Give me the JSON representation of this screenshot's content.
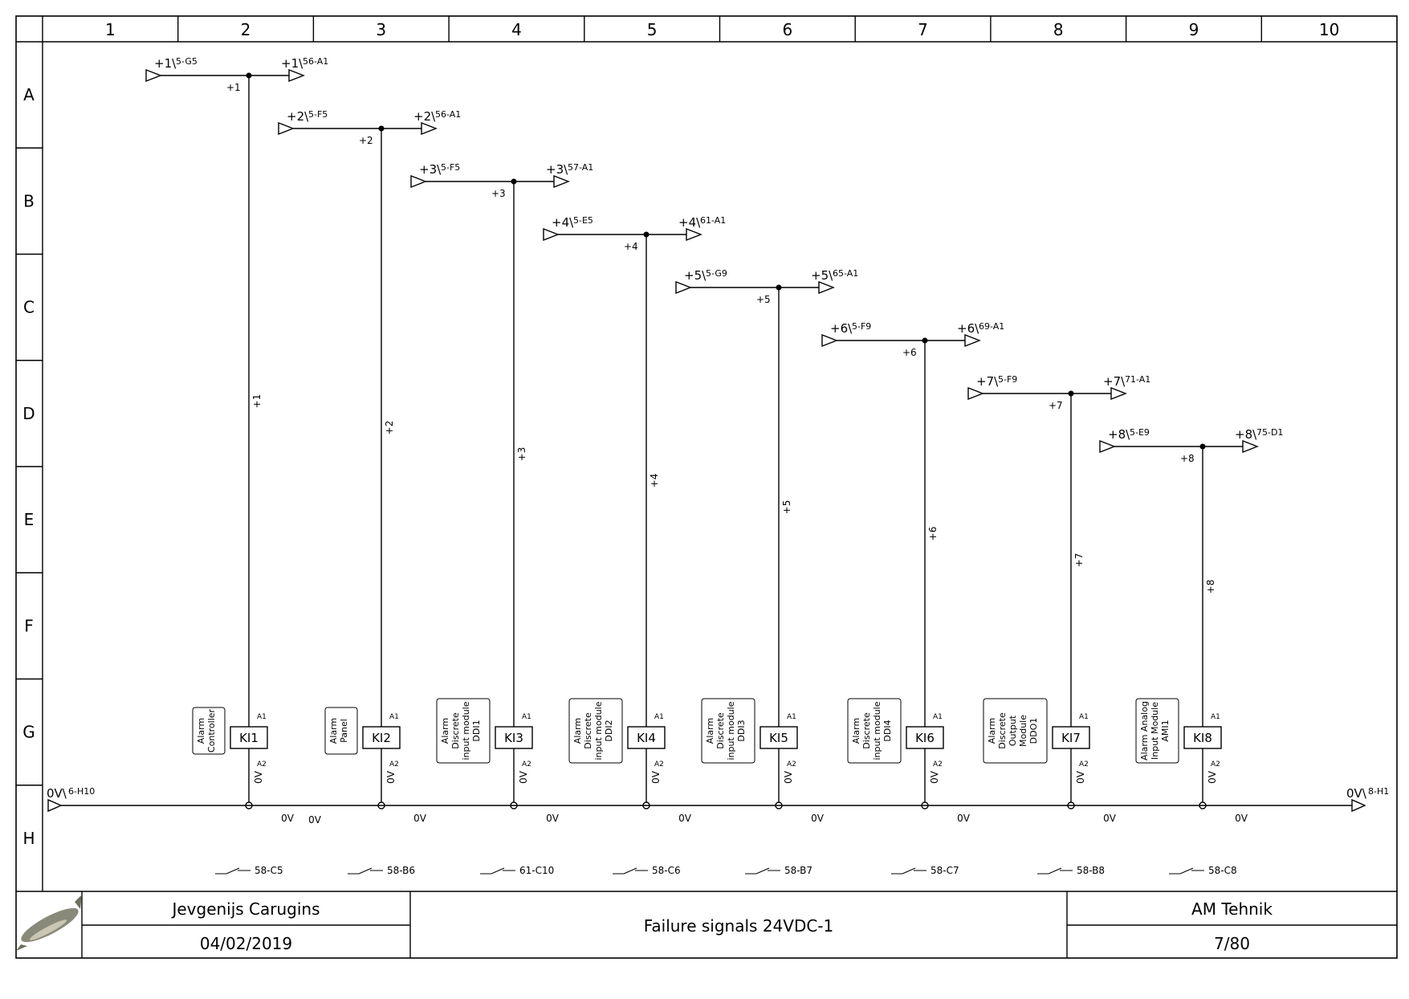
{
  "columns": [
    "1",
    "2",
    "3",
    "4",
    "5",
    "6",
    "7",
    "8",
    "9",
    "10"
  ],
  "rows": [
    "A",
    "B",
    "C",
    "D",
    "E",
    "F",
    "G",
    "H"
  ],
  "title_block": {
    "author": "Jevgenijs Carugins",
    "date": "04/02/2019",
    "title": "Failure signals 24VDC-1",
    "company": "AM Tehnik",
    "page": "7/80",
    "logo_icon": "sturgeon-fish-icon"
  },
  "ground_bus": {
    "left_label": "0V\\",
    "left_ref": "6-H10",
    "right_label": "0V\\",
    "right_ref": "8-H1",
    "net": "0V"
  },
  "circuits": [
    {
      "net": "+1",
      "in_label": "+1\\",
      "in_ref": "5-G5",
      "out_label": "+1\\",
      "out_ref": "56-A1",
      "wire": "+1",
      "relay": "KI1",
      "pin_top": "A1",
      "pin_bottom": "A2",
      "gnd": "0V",
      "device": [
        "Alarm",
        "Controller"
      ],
      "contact_ref": "58-C5"
    },
    {
      "net": "+2",
      "in_label": "+2\\",
      "in_ref": "5-F5",
      "out_label": "+2\\",
      "out_ref": "56-A1",
      "wire": "+2",
      "relay": "KI2",
      "pin_top": "A1",
      "pin_bottom": "A2",
      "gnd": "0V",
      "device": [
        "Alarm",
        "Panel"
      ],
      "contact_ref": "58-B6"
    },
    {
      "net": "+3",
      "in_label": "+3\\",
      "in_ref": "5-F5",
      "out_label": "+3\\",
      "out_ref": "57-A1",
      "wire": "+3",
      "relay": "KI3",
      "pin_top": "A1",
      "pin_bottom": "A2",
      "gnd": "0V",
      "device": [
        "Alarm",
        "Discrete",
        "input module",
        "DDI1"
      ],
      "contact_ref": "61-C10"
    },
    {
      "net": "+4",
      "in_label": "+4\\",
      "in_ref": "5-E5",
      "out_label": "+4\\",
      "out_ref": "61-A1",
      "wire": "+4",
      "relay": "KI4",
      "pin_top": "A1",
      "pin_bottom": "A2",
      "gnd": "0V",
      "device": [
        "Alarm",
        "Discrete",
        "input module",
        "DDI2"
      ],
      "contact_ref": "58-C6"
    },
    {
      "net": "+5",
      "in_label": "+5\\",
      "in_ref": "5-G9",
      "out_label": "+5\\",
      "out_ref": "65-A1",
      "wire": "+5",
      "relay": "KI5",
      "pin_top": "A1",
      "pin_bottom": "A2",
      "gnd": "0V",
      "device": [
        "Alarm",
        "Discrete",
        "input module",
        "DDI3"
      ],
      "contact_ref": "58-B7"
    },
    {
      "net": "+6",
      "in_label": "+6\\",
      "in_ref": "5-F9",
      "out_label": "+6\\",
      "out_ref": "69-A1",
      "wire": "+6",
      "relay": "KI6",
      "pin_top": "A1",
      "pin_bottom": "A2",
      "gnd": "0V",
      "device": [
        "Alarm",
        "Discrete",
        "input module",
        "DDI4"
      ],
      "contact_ref": "58-C7"
    },
    {
      "net": "+7",
      "in_label": "+7\\",
      "in_ref": "5-F9",
      "out_label": "+7\\",
      "out_ref": "71-A1",
      "wire": "+7",
      "relay": "KI7",
      "pin_top": "A1",
      "pin_bottom": "A2",
      "gnd": "0V",
      "device": [
        "Alarm",
        "Discrete",
        "Output",
        "Module",
        "DDO1"
      ],
      "contact_ref": "58-B8"
    },
    {
      "net": "+8",
      "in_label": "+8\\",
      "in_ref": "5-E9",
      "out_label": "+8\\",
      "out_ref": "75-D1",
      "wire": "+8",
      "relay": "KI8",
      "pin_top": "A1",
      "pin_bottom": "A2",
      "gnd": "0V",
      "device": [
        "Alarm Analog",
        "Input Module",
        "AMI1"
      ],
      "contact_ref": "58-C8"
    }
  ],
  "bus_segment_label": "0V"
}
